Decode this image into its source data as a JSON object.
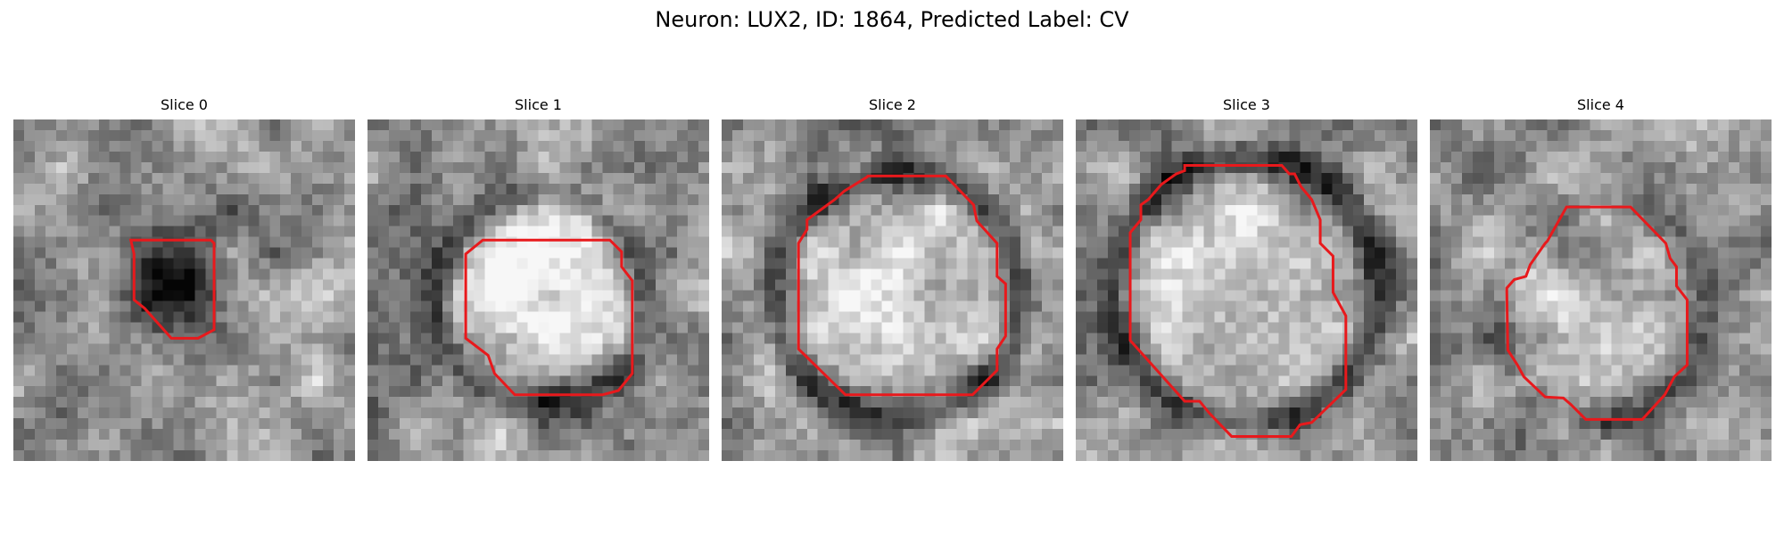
{
  "figure": {
    "title": "Neuron: LUX2, ID: 1864, Predicted Label: CV",
    "outline_color": "#e8191c",
    "colormap": "grayscale",
    "grid_size": 32
  },
  "panels": [
    {
      "title": "Slice 0",
      "seed": 11,
      "dark_blob": {
        "cx": 15.0,
        "cy": 14.2,
        "r": 4.0,
        "strength": 0.6
      },
      "bright_blob": null,
      "ring": null,
      "outline": [
        [
          11,
          11.3
        ],
        [
          13,
          11.3
        ],
        [
          18.5,
          11.3
        ],
        [
          18.8,
          11.6
        ],
        [
          18.8,
          19.7
        ],
        [
          17.3,
          20.5
        ],
        [
          14.8,
          20.5
        ],
        [
          12.3,
          17.7
        ],
        [
          11.3,
          16.9
        ],
        [
          11.3,
          12.6
        ]
      ]
    },
    {
      "title": "Slice 1",
      "seed": 23,
      "dark_blob": null,
      "bright_blob": {
        "cx": 16.5,
        "cy": 15.8,
        "r": 6.8,
        "strength": 0.45
      },
      "ring": {
        "cx": 16.2,
        "cy": 16.8,
        "r": 9.8,
        "w": 1.6,
        "strength": 0.35
      },
      "outline": [
        [
          10.8,
          11.3
        ],
        [
          22.7,
          11.3
        ],
        [
          23.8,
          12.4
        ],
        [
          23.8,
          13.8
        ],
        [
          24.8,
          15.1
        ],
        [
          24.8,
          23.8
        ],
        [
          23.5,
          25.4
        ],
        [
          22.0,
          25.8
        ],
        [
          13.8,
          25.8
        ],
        [
          11.9,
          23.8
        ],
        [
          11.3,
          22.1
        ],
        [
          9.2,
          20.5
        ],
        [
          9.2,
          12.6
        ]
      ]
    },
    {
      "title": "Slice 2",
      "seed": 37,
      "dark_blob": null,
      "bright_blob": {
        "cx": 16.5,
        "cy": 16.2,
        "r": 8.8,
        "strength": 0.35
      },
      "ring": {
        "cx": 16.5,
        "cy": 16.5,
        "r": 11.4,
        "w": 1.7,
        "strength": 0.4
      },
      "outline": [
        [
          13.7,
          5.3
        ],
        [
          21.0,
          5.3
        ],
        [
          23.6,
          8.0
        ],
        [
          23.9,
          9.5
        ],
        [
          25.8,
          11.6
        ],
        [
          25.8,
          14.7
        ],
        [
          26.6,
          15.4
        ],
        [
          26.6,
          20.3
        ],
        [
          25.8,
          21.5
        ],
        [
          25.8,
          23.5
        ],
        [
          23.5,
          25.8
        ],
        [
          11.6,
          25.8
        ],
        [
          7.2,
          21.5
        ],
        [
          7.2,
          11.6
        ],
        [
          8.0,
          10.3
        ],
        [
          8.0,
          9.4
        ],
        [
          10.6,
          7.5
        ],
        [
          11.5,
          6.7
        ],
        [
          13.6,
          5.4
        ]
      ]
    },
    {
      "title": "Slice 3",
      "seed": 53,
      "dark_blob": null,
      "bright_blob": {
        "cx": 16.0,
        "cy": 15.5,
        "r": 9.0,
        "strength": 0.35
      },
      "ring": {
        "cx": 16.0,
        "cy": 16.0,
        "r": 12.4,
        "w": 1.7,
        "strength": 0.4
      },
      "outline": [
        [
          10.2,
          4.3
        ],
        [
          19.3,
          4.3
        ],
        [
          20.0,
          5.1
        ],
        [
          20.5,
          5.1
        ],
        [
          21.1,
          6.3
        ],
        [
          22.1,
          7.5
        ],
        [
          22.9,
          9.4
        ],
        [
          22.9,
          11.6
        ],
        [
          24.1,
          12.8
        ],
        [
          24.1,
          16.2
        ],
        [
          25.3,
          18.4
        ],
        [
          25.3,
          25.3
        ],
        [
          22.1,
          28.4
        ],
        [
          21.0,
          28.6
        ],
        [
          20.2,
          29.7
        ],
        [
          14.6,
          29.7
        ],
        [
          12.5,
          27.5
        ],
        [
          11.6,
          26.4
        ],
        [
          10.2,
          26.4
        ],
        [
          5.1,
          20.7
        ],
        [
          5.1,
          10.6
        ],
        [
          6.1,
          9.4
        ],
        [
          6.1,
          8.0
        ],
        [
          6.8,
          7.5
        ],
        [
          8.0,
          6.1
        ],
        [
          9.4,
          5.1
        ],
        [
          10.2,
          4.8
        ]
      ]
    },
    {
      "title": "Slice 4",
      "seed": 71,
      "dark_blob": null,
      "bright_blob": {
        "cx": 16.2,
        "cy": 18.0,
        "r": 7.8,
        "strength": 0.22
      },
      "ring": {
        "cx": 16.0,
        "cy": 18.0,
        "r": 10.0,
        "w": 1.5,
        "strength": 0.22
      },
      "outline": [
        [
          12.8,
          8.2
        ],
        [
          18.8,
          8.2
        ],
        [
          22.1,
          11.6
        ],
        [
          22.5,
          13.0
        ],
        [
          23.1,
          13.8
        ],
        [
          23.1,
          15.6
        ],
        [
          24.1,
          16.9
        ],
        [
          24.1,
          23.0
        ],
        [
          22.9,
          24.1
        ],
        [
          22.0,
          25.8
        ],
        [
          19.9,
          28.1
        ],
        [
          14.6,
          28.1
        ],
        [
          13.2,
          26.7
        ],
        [
          12.5,
          26.1
        ],
        [
          10.8,
          26.0
        ],
        [
          8.8,
          24.1
        ],
        [
          8.2,
          23.0
        ],
        [
          7.3,
          21.6
        ],
        [
          7.2,
          15.8
        ],
        [
          7.9,
          15.0
        ],
        [
          9.0,
          14.7
        ],
        [
          9.4,
          13.6
        ],
        [
          10.8,
          11.6
        ],
        [
          11.0,
          11.4
        ]
      ]
    }
  ]
}
